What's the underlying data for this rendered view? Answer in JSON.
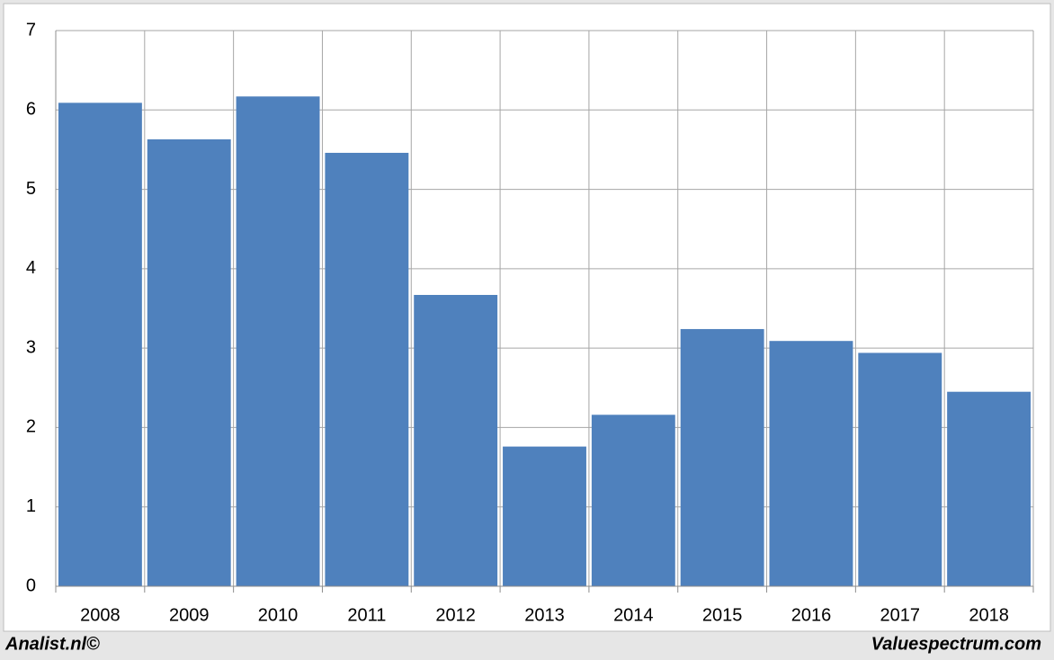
{
  "chart_data": {
    "type": "bar",
    "categories": [
      "2008",
      "2009",
      "2010",
      "2011",
      "2012",
      "2013",
      "2014",
      "2015",
      "2016",
      "2017",
      "2018"
    ],
    "values": [
      6.09,
      5.63,
      6.17,
      5.46,
      3.67,
      1.76,
      2.16,
      3.24,
      3.09,
      2.94,
      2.45
    ],
    "color": "#4f81bd",
    "ylim": [
      0,
      7
    ],
    "yticks": [
      0,
      1,
      2,
      3,
      4,
      5,
      6,
      7
    ],
    "grid": true,
    "annotations": [
      "Analist.nl©",
      "Valuespectrum.com"
    ]
  }
}
